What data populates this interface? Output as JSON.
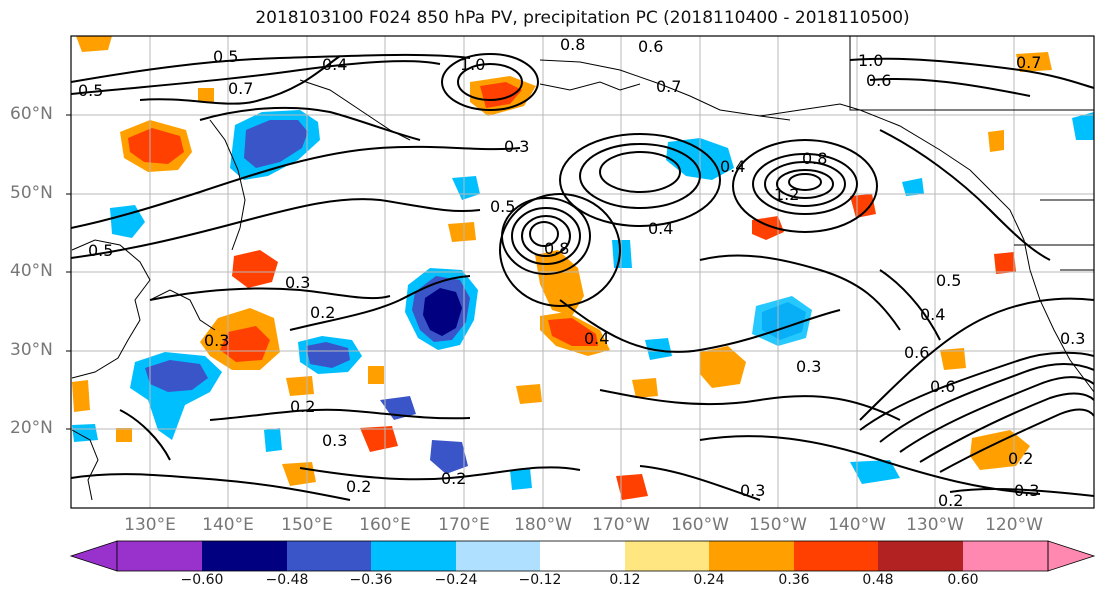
{
  "title": "2018103100 F024 850 hPa PV, precipitation PC (2018110400 - 2018110500)",
  "lat_labels": [
    "60°N",
    "50°N",
    "40°N",
    "30°N",
    "20°N"
  ],
  "lon_labels": [
    "130°E",
    "140°E",
    "150°E",
    "160°E",
    "170°E",
    "180°W",
    "170°W",
    "160°W",
    "150°W",
    "140°W",
    "130°W",
    "120°W"
  ],
  "colorbar": {
    "ticks": [
      "−0.60",
      "−0.48",
      "−0.36",
      "−0.24",
      "−0.12",
      "0.12",
      "0.24",
      "0.36",
      "0.48",
      "0.60"
    ],
    "colors": [
      "#9932cc",
      "#000080",
      "#3a55c8",
      "#00bfff",
      "#b0e0ff",
      "#ffffff",
      "#ffe680",
      "#ffa000",
      "#ff4000",
      "#b22222",
      "#ff88b0"
    ]
  },
  "contour_labels": [
    "0.5",
    "0.4",
    "0.8",
    "0.7",
    "0.6",
    "1.0",
    "0.3",
    "0.7",
    "0.5",
    "0.2",
    "0.3",
    "0.2",
    "0.4",
    "0.3",
    "0.2",
    "0.3",
    "0.2",
    "0.4",
    "0.3",
    "0.3",
    "0.2",
    "0.3",
    "0.2",
    "0.5",
    "0.6",
    "0.7",
    "0.5",
    "0.3",
    "0.8",
    "0.4",
    "1.0",
    "1.2",
    "0.8",
    "0.5",
    "0.6",
    "0.4",
    "0.6"
  ]
}
